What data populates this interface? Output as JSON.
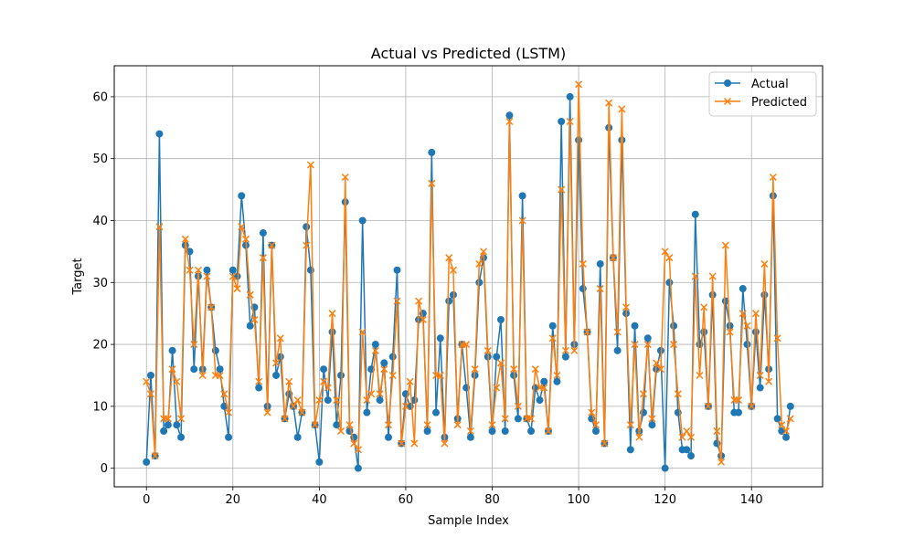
{
  "chart_data": {
    "type": "line",
    "title": "Actual vs Predicted (LSTM)",
    "xlabel": "Sample Index",
    "ylabel": "Target",
    "xlim": [
      -7.45,
      156.45
    ],
    "ylim": [
      -3,
      65
    ],
    "xticks": [
      0,
      20,
      40,
      60,
      80,
      100,
      120,
      140
    ],
    "yticks": [
      0,
      10,
      20,
      30,
      40,
      50,
      60
    ],
    "grid": true,
    "legend": "top-right",
    "series": [
      {
        "name": "Actual",
        "color": "#1f77b4",
        "marker": "circle",
        "values": [
          1,
          15,
          2,
          54,
          6,
          7,
          19,
          7,
          5,
          36,
          35,
          16,
          31,
          16,
          32,
          26,
          19,
          16,
          10,
          5,
          32,
          31,
          44,
          36,
          23,
          26,
          13,
          38,
          10,
          36,
          15,
          18,
          8,
          12,
          10,
          5,
          9,
          39,
          32,
          7,
          1,
          16,
          11,
          22,
          7,
          15,
          43,
          6,
          5,
          0,
          40,
          9,
          16,
          20,
          11,
          17,
          5,
          18,
          32,
          4,
          12,
          10,
          11,
          24,
          25,
          6,
          51,
          9,
          21,
          5,
          27,
          28,
          8,
          20,
          13,
          5,
          15,
          30,
          34,
          18,
          6,
          18,
          24,
          6,
          57,
          15,
          8,
          44,
          8,
          6,
          13,
          11,
          14,
          6,
          23,
          14,
          56,
          18,
          60,
          20,
          53,
          29,
          22,
          8,
          6,
          33,
          4,
          55,
          34,
          19,
          53,
          25,
          3,
          23,
          6,
          9,
          21,
          7,
          16,
          19,
          0,
          30,
          23,
          9,
          3,
          3,
          2,
          41,
          20,
          22,
          10,
          28,
          4,
          2,
          27,
          23,
          9,
          9,
          29,
          20,
          10,
          22,
          13,
          28,
          16,
          44,
          8,
          6,
          5,
          10
        ]
      },
      {
        "name": "Predicted",
        "color": "#ff7f0e",
        "marker": "x",
        "values": [
          14,
          12,
          2,
          39,
          8,
          8,
          16,
          14,
          8,
          37,
          32,
          20,
          32,
          15,
          31,
          26,
          15,
          15,
          12,
          9,
          31,
          29,
          39,
          37,
          28,
          24,
          14,
          34,
          9,
          36,
          17,
          21,
          8,
          14,
          10,
          11,
          9,
          36,
          49,
          7,
          11,
          14,
          13,
          25,
          11,
          6,
          47,
          7,
          4,
          3,
          22,
          11,
          12,
          19,
          12,
          16,
          7,
          15,
          27,
          4,
          10,
          14,
          4,
          27,
          24,
          7,
          46,
          15,
          15,
          4,
          34,
          32,
          7,
          20,
          20,
          6,
          16,
          33,
          35,
          19,
          7,
          13,
          17,
          8,
          56,
          16,
          10,
          40,
          8,
          8,
          16,
          13,
          13,
          6,
          21,
          15,
          45,
          19,
          56,
          19,
          62,
          33,
          22,
          9,
          7,
          29,
          4,
          59,
          34,
          22,
          58,
          26,
          7,
          20,
          5,
          12,
          20,
          8,
          17,
          16,
          35,
          34,
          20,
          12,
          5,
          6,
          5,
          31,
          15,
          26,
          10,
          31,
          6,
          1,
          36,
          22,
          11,
          11,
          25,
          23,
          10,
          25,
          15,
          33,
          14,
          47,
          21,
          7,
          6,
          8
        ]
      }
    ]
  }
}
